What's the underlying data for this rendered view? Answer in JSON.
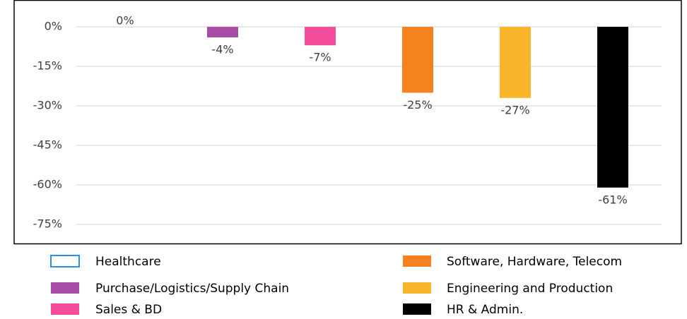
{
  "chart_data": {
    "type": "bar",
    "categories": [
      null
    ],
    "series": [
      {
        "name": "Healthcare",
        "color": "#2f8fd8",
        "outline": true,
        "values": [
          0
        ],
        "value_labels": [
          "0%"
        ]
      },
      {
        "name": "Purchase/Logistics/Supply Chain",
        "color": "#a64ca6",
        "values": [
          -4
        ],
        "value_labels": [
          "-4%"
        ]
      },
      {
        "name": "Sales & BD",
        "color": "#f54d9b",
        "values": [
          -7
        ],
        "value_labels": [
          "-7%"
        ]
      },
      {
        "name": "Software, Hardware, Telecom",
        "color": "#f5821f",
        "values": [
          -25
        ],
        "value_labels": [
          "-25%"
        ]
      },
      {
        "name": "Engineering and Production",
        "color": "#fbb52b",
        "values": [
          -27
        ],
        "value_labels": [
          "-27%"
        ]
      },
      {
        "name": "HR & Admin.",
        "color": "#000000",
        "values": [
          -61
        ],
        "value_labels": [
          "-61%"
        ]
      }
    ],
    "ylim": [
      -80,
      10
    ],
    "yticks": [
      {
        "value": 0,
        "label": "0%"
      },
      {
        "value": -15,
        "label": "-15%"
      },
      {
        "value": -30,
        "label": "-30%"
      },
      {
        "value": -45,
        "label": "-45%"
      },
      {
        "value": -60,
        "label": "-60%"
      },
      {
        "value": -75,
        "label": "-75%"
      }
    ],
    "grid": true,
    "legend": "bottom"
  }
}
